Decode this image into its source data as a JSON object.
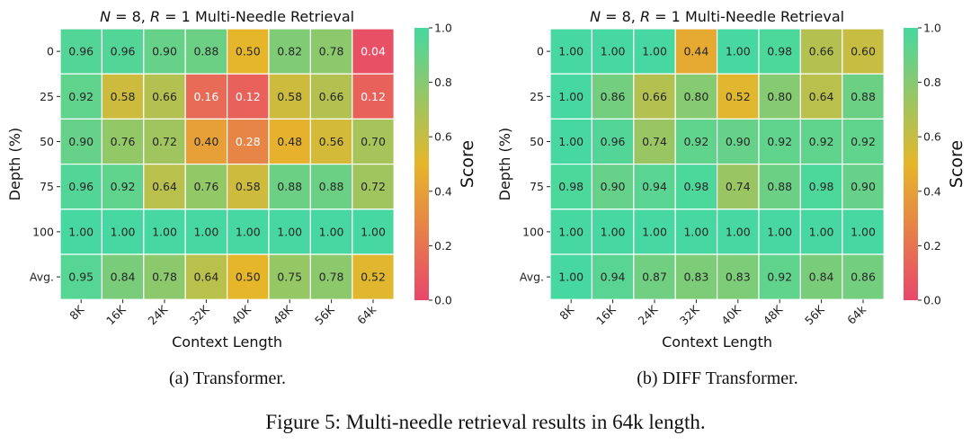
{
  "chart_data": [
    {
      "type": "heatmap",
      "title": "N = 8, R = 1 Multi-Needle Retrieval",
      "title_parts": {
        "n": "N",
        "n_val": " = 8, ",
        "r": "R",
        "r_val": " = 1 Multi-Needle Retrieval"
      },
      "xlabel": "Context Length",
      "ylabel": "Depth (%)",
      "colorbar_label": "Score",
      "colorbar_ticks": [
        "0.0",
        "0.2",
        "0.4",
        "0.6",
        "0.8",
        "1.0"
      ],
      "clim": [
        0,
        1
      ],
      "x": [
        "8K",
        "16K",
        "24K",
        "32K",
        "40K",
        "48K",
        "56K",
        "64k"
      ],
      "y": [
        "0",
        "25",
        "50",
        "75",
        "100",
        "Avg."
      ],
      "values": [
        [
          0.96,
          0.96,
          0.9,
          0.88,
          0.5,
          0.82,
          0.78,
          0.04
        ],
        [
          0.92,
          0.58,
          0.66,
          0.16,
          0.12,
          0.58,
          0.66,
          0.12
        ],
        [
          0.9,
          0.76,
          0.72,
          0.4,
          0.28,
          0.48,
          0.56,
          0.7
        ],
        [
          0.96,
          0.92,
          0.64,
          0.76,
          0.58,
          0.88,
          0.88,
          0.72
        ],
        [
          1.0,
          1.0,
          1.0,
          1.0,
          1.0,
          1.0,
          1.0,
          1.0
        ],
        [
          0.95,
          0.84,
          0.78,
          0.64,
          0.5,
          0.75,
          0.78,
          0.52
        ]
      ],
      "caption": "(a) Transformer."
    },
    {
      "type": "heatmap",
      "title": "N = 8, R = 1 Multi-Needle Retrieval",
      "title_parts": {
        "n": "N",
        "n_val": " = 8, ",
        "r": "R",
        "r_val": " = 1 Multi-Needle Retrieval"
      },
      "xlabel": "Context Length",
      "ylabel": "Depth (%)",
      "colorbar_label": "Score",
      "colorbar_ticks": [
        "0.0",
        "0.2",
        "0.4",
        "0.6",
        "0.8",
        "1.0"
      ],
      "clim": [
        0,
        1
      ],
      "x": [
        "8K",
        "16K",
        "24K",
        "32K",
        "40K",
        "48K",
        "56K",
        "64k"
      ],
      "y": [
        "0",
        "25",
        "50",
        "75",
        "100",
        "Avg."
      ],
      "values": [
        [
          1.0,
          1.0,
          1.0,
          0.44,
          1.0,
          0.98,
          0.66,
          0.6
        ],
        [
          1.0,
          0.86,
          0.66,
          0.8,
          0.52,
          0.8,
          0.64,
          0.88
        ],
        [
          1.0,
          0.96,
          0.74,
          0.92,
          0.9,
          0.92,
          0.92,
          0.92
        ],
        [
          0.98,
          0.9,
          0.94,
          0.98,
          0.74,
          0.88,
          0.98,
          0.9
        ],
        [
          1.0,
          1.0,
          1.0,
          1.0,
          1.0,
          1.0,
          1.0,
          1.0
        ],
        [
          1.0,
          0.94,
          0.87,
          0.83,
          0.83,
          0.92,
          0.84,
          0.86
        ]
      ],
      "caption": "(b) DIFF Transformer."
    }
  ],
  "colors": {
    "low": "#e8476b",
    "mid": "#e6b62a",
    "high": "#46d8a0"
  },
  "figure_caption": "Figure 5: Multi-needle retrieval results in 64k length."
}
